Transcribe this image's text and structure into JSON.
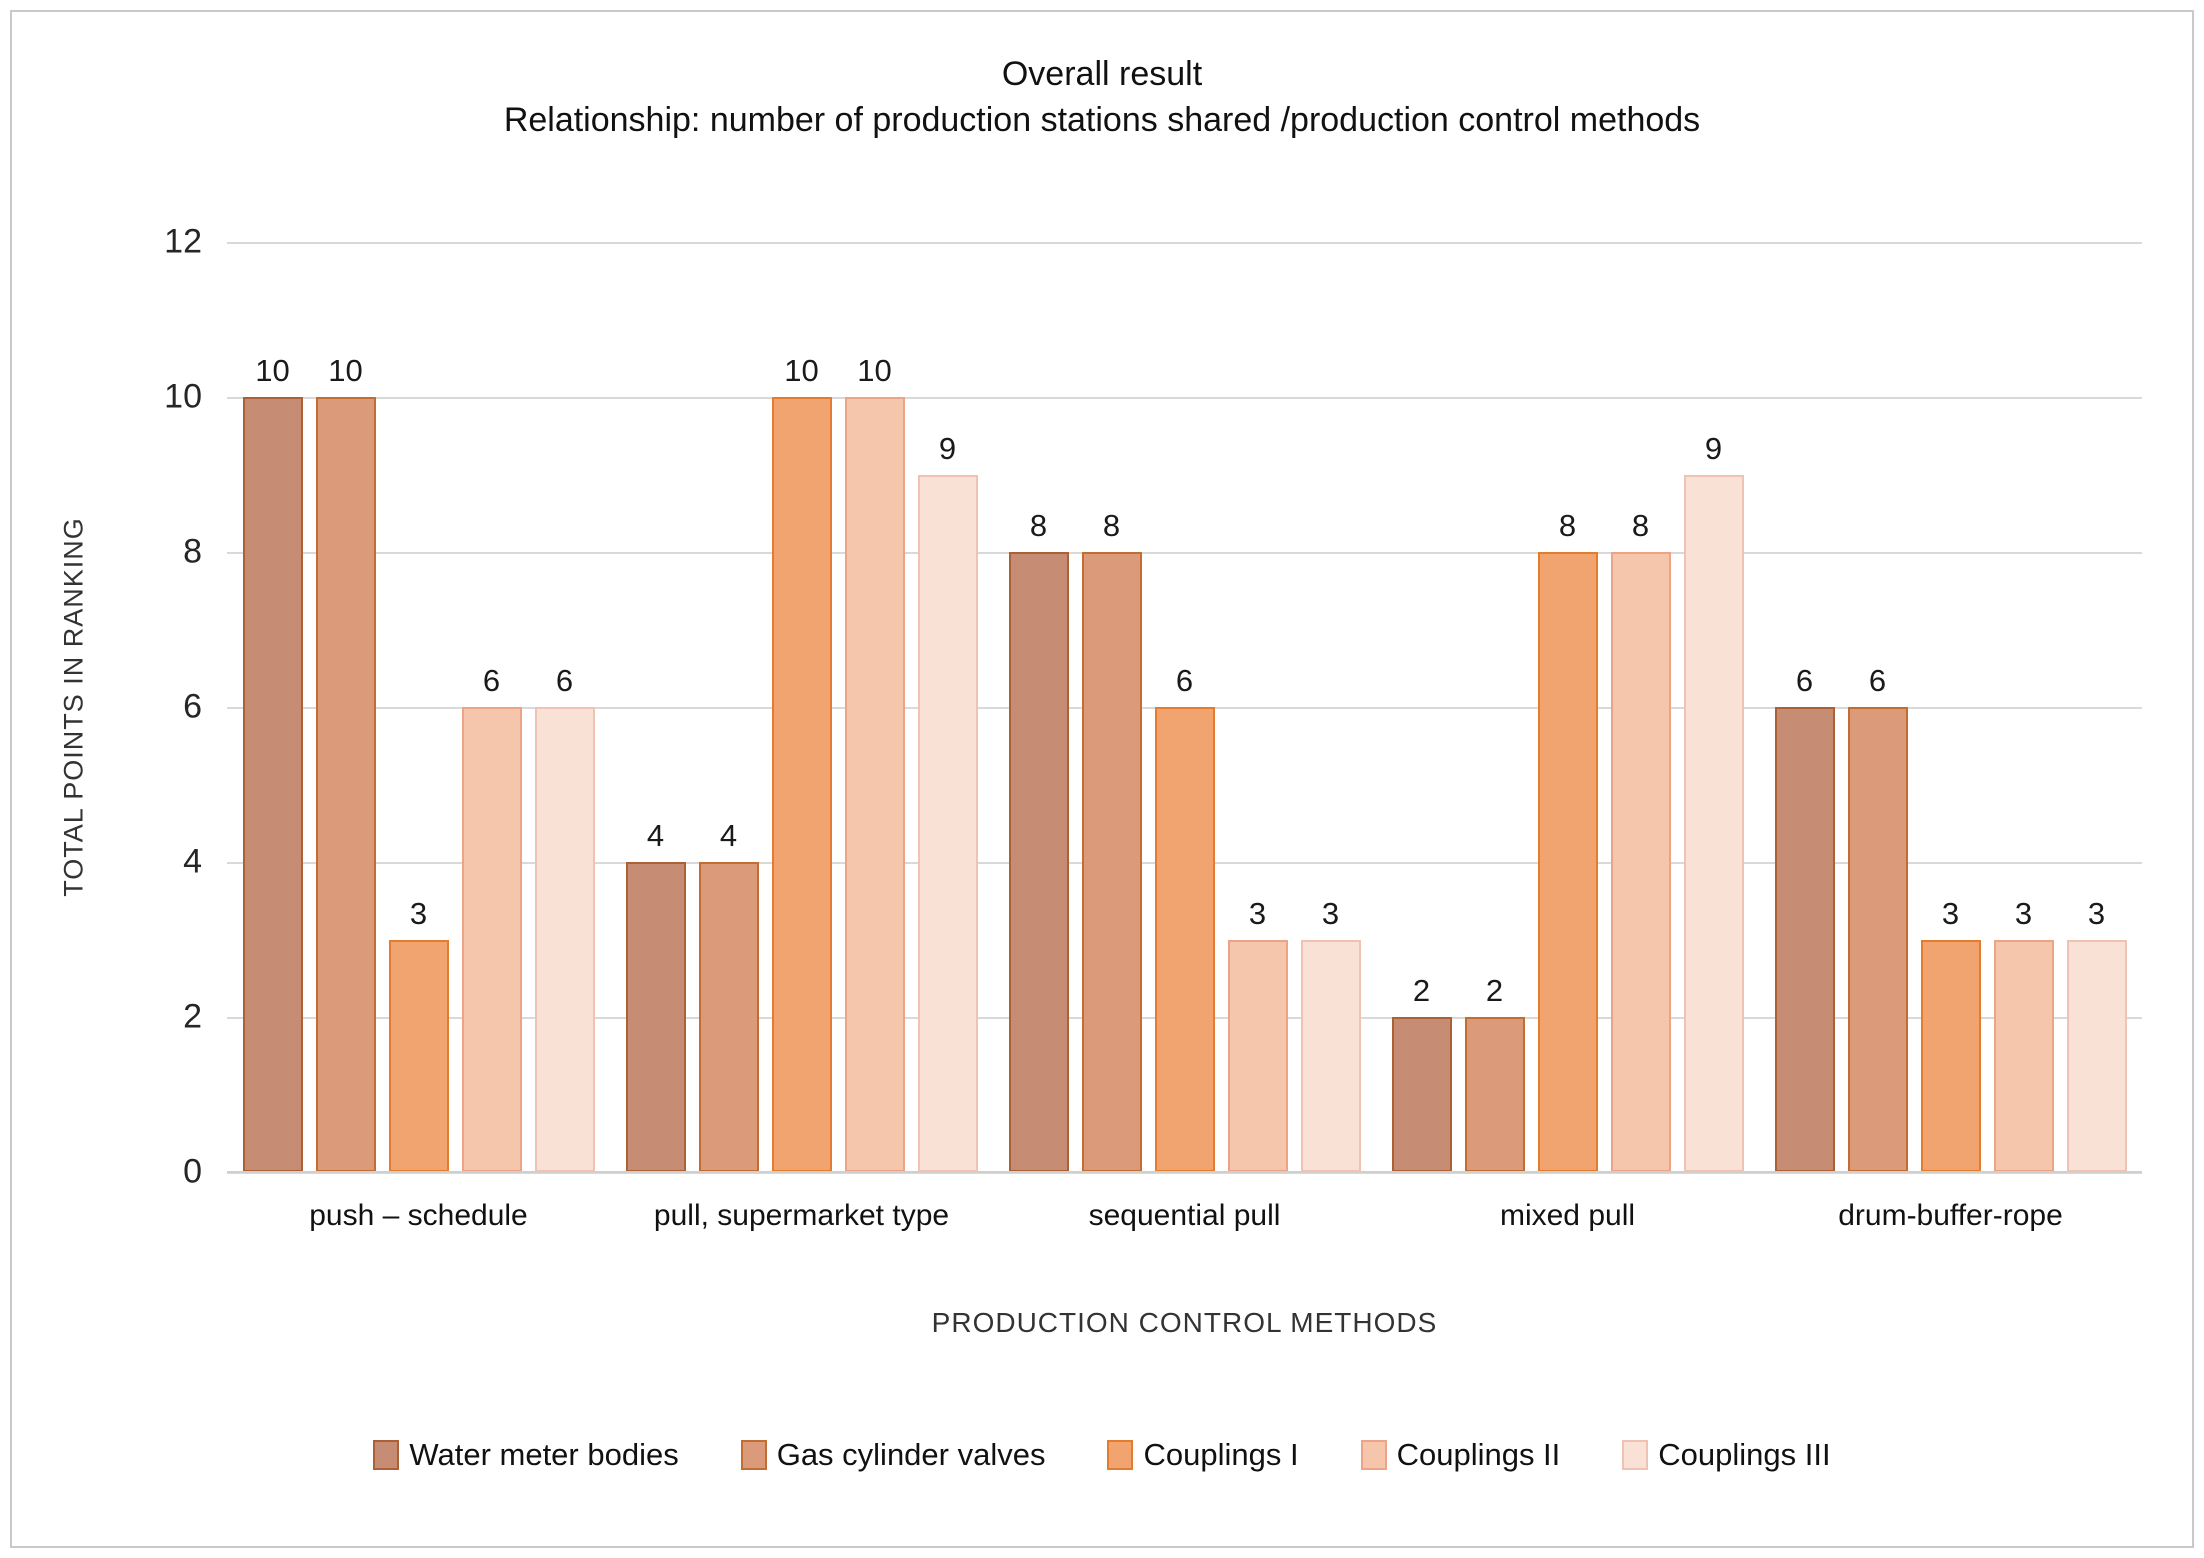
{
  "chart_data": {
    "type": "bar",
    "title_line1": "Overall result",
    "title_line2": "Relationship:  number of production stations  shared /production control methods",
    "categories": [
      "push – schedule",
      "pull, supermarket type",
      "sequential pull",
      "mixed pull",
      "drum-buffer-rope"
    ],
    "series": [
      {
        "name": "Water meter bodies",
        "values": [
          10,
          4,
          8,
          2,
          6
        ],
        "fill": "#C78C74",
        "border": "#AC6035"
      },
      {
        "name": "Gas cylinder valves",
        "values": [
          10,
          4,
          8,
          2,
          6
        ],
        "fill": "#DB9B7B",
        "border": "#C26E33"
      },
      {
        "name": "Couplings I",
        "values": [
          3,
          10,
          6,
          8,
          3
        ],
        "fill": "#F1A370",
        "border": "#E47C2E"
      },
      {
        "name": "Couplings II",
        "values": [
          6,
          10,
          3,
          8,
          3
        ],
        "fill": "#F5C5AC",
        "border": "#EBA488"
      },
      {
        "name": "Couplings III",
        "values": [
          6,
          9,
          3,
          9,
          3
        ],
        "fill": "#F9E1D6",
        "border": "#EFC3B4"
      }
    ],
    "xlabel": "PRODUCTION CONTROL METHODS",
    "ylabel": "TOTAL POINTS IN RANKING",
    "ylim": [
      0,
      12
    ],
    "yticks": [
      0,
      2,
      4,
      6,
      8,
      10,
      12
    ],
    "grid": true,
    "data_labels": true,
    "legend_position": "bottom",
    "colors": {
      "gridline": "#d9d9d9",
      "text": "#1a1a1a"
    }
  }
}
